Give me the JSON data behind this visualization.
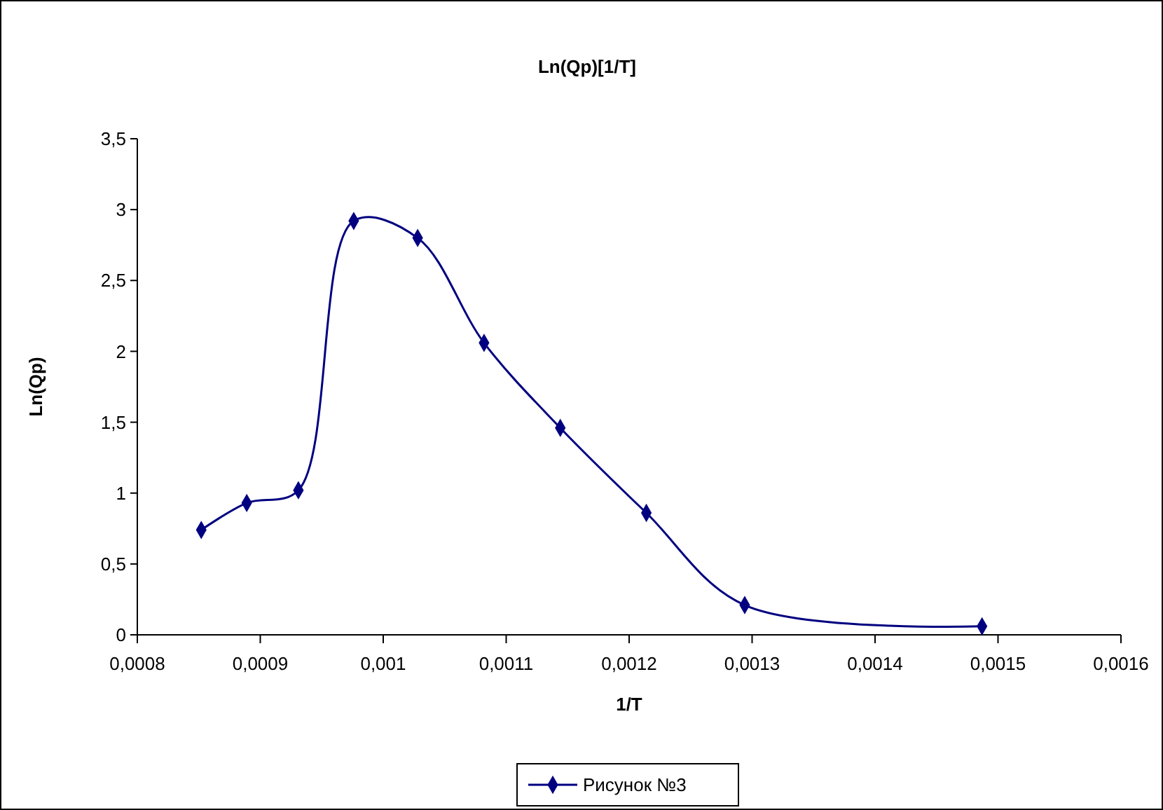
{
  "chart_data": {
    "type": "line",
    "title": "Ln(Qp)[1/T]",
    "xlabel": "1/T",
    "ylabel": "Ln(Qp)",
    "x": [
      0.000852,
      0.000889,
      0.000931,
      0.000976,
      0.001028,
      0.001082,
      0.001144,
      0.001214,
      0.001294,
      0.001487
    ],
    "series": [
      {
        "name": "Рисунок №3",
        "color": "#000080",
        "values": [
          0.74,
          0.93,
          1.02,
          2.92,
          2.8,
          2.06,
          1.46,
          0.86,
          0.21,
          0.06
        ]
      }
    ],
    "xlim": [
      0.0008,
      0.0016
    ],
    "xticks": [
      {
        "value": 0.0008,
        "label": "0,0008"
      },
      {
        "value": 0.0009,
        "label": "0,0009"
      },
      {
        "value": 0.001,
        "label": "0,001"
      },
      {
        "value": 0.0011,
        "label": "0,0011"
      },
      {
        "value": 0.0012,
        "label": "0,0012"
      },
      {
        "value": 0.0013,
        "label": "0,0013"
      },
      {
        "value": 0.0014,
        "label": "0,0014"
      },
      {
        "value": 0.0015,
        "label": "0,0015"
      },
      {
        "value": 0.0016,
        "label": "0,0016"
      }
    ],
    "ylim": [
      0,
      3.5
    ],
    "yticks": [
      0,
      {
        "value": 0.5,
        "label": "0,5"
      },
      1,
      {
        "value": 1.5,
        "label": "1,5"
      },
      2,
      {
        "value": 2.5,
        "label": "2,5"
      },
      3,
      {
        "value": 3.5,
        "label": "3,5"
      }
    ],
    "legend": "bottom",
    "marker": "diamond",
    "line_style": "solid"
  }
}
